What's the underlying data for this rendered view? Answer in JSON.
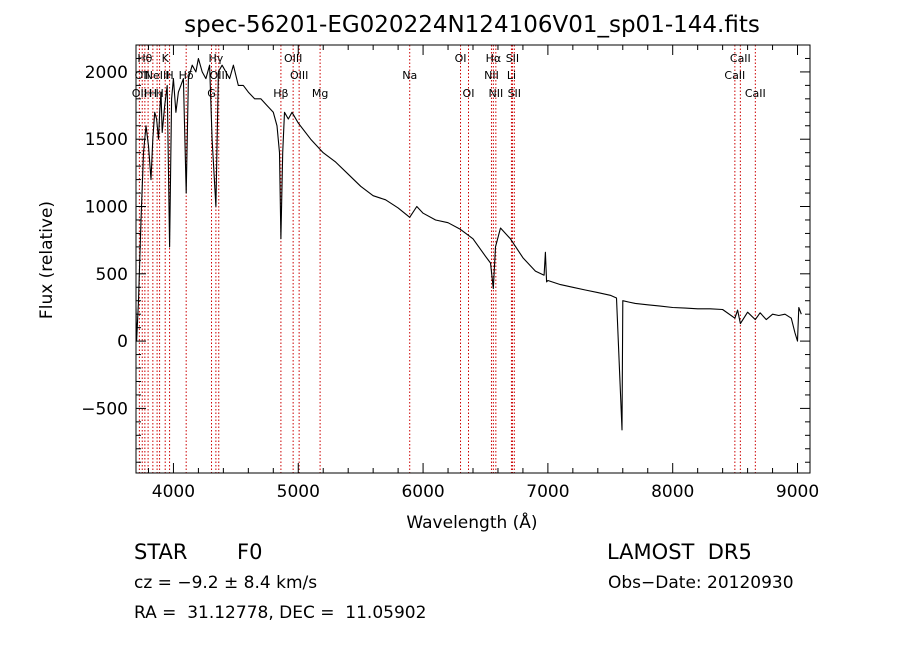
{
  "chart_data": {
    "type": "line",
    "title": "spec-56201-EG020224N124106V01_sp01-144.fits",
    "xlabel": "Wavelength (Å)",
    "ylabel": "Flux (relative)",
    "xlim": [
      3700,
      9100
    ],
    "ylim": [
      -980,
      2200
    ],
    "x_ticks": [
      4000,
      5000,
      6000,
      7000,
      8000,
      9000
    ],
    "x_tick_labels": [
      "4000",
      "5000",
      "6000",
      "7000",
      "8000",
      "9000"
    ],
    "y_ticks": [
      -500,
      0,
      500,
      1000,
      1500,
      2000
    ],
    "y_tick_labels": [
      "−500",
      "0",
      "500",
      "1000",
      "1500",
      "2000"
    ],
    "line_color": "#000000",
    "line_marker_color": "#cc0000",
    "series": [
      {
        "x": [
          3700,
          3705,
          3720,
          3740,
          3760,
          3780,
          3800,
          3820,
          3835,
          3850,
          3865,
          3880,
          3890,
          3900,
          3910,
          3930,
          3950,
          3969,
          3985,
          4000,
          4020,
          4040,
          4060,
          4080,
          4102,
          4120,
          4150,
          4180,
          4200,
          4230,
          4260,
          4290,
          4310,
          4340,
          4360,
          4390,
          4420,
          4450,
          4480,
          4520,
          4560,
          4600,
          4650,
          4700,
          4750,
          4800,
          4830,
          4850,
          4861,
          4875,
          4890,
          4920,
          4950,
          5000,
          5100,
          5200,
          5300,
          5400,
          5500,
          5600,
          5700,
          5800,
          5893,
          5950,
          6000,
          6100,
          6200,
          6300,
          6400,
          6500,
          6540,
          6563,
          6580,
          6620,
          6700,
          6800,
          6900,
          6970,
          6980,
          6990,
          7000,
          7100,
          7200,
          7300,
          7400,
          7500,
          7550,
          7594,
          7600,
          7650,
          7700,
          7800,
          7900,
          8000,
          8100,
          8200,
          8300,
          8400,
          8498,
          8520,
          8542,
          8600,
          8662,
          8700,
          8750,
          8800,
          8850,
          8900,
          8950,
          8980,
          9000,
          9010,
          9030
        ],
        "y": [
          250,
          0,
          300,
          900,
          1400,
          1600,
          1450,
          1200,
          1500,
          1700,
          1650,
          1500,
          1700,
          1850,
          1550,
          1750,
          1900,
          700,
          1800,
          1950,
          1700,
          1850,
          1900,
          1950,
          1100,
          1950,
          2050,
          2000,
          2100,
          2000,
          1950,
          2050,
          1500,
          1000,
          2000,
          2050,
          2000,
          1950,
          2050,
          1900,
          1900,
          1850,
          1800,
          1800,
          1750,
          1700,
          1600,
          1400,
          760,
          1400,
          1700,
          1650,
          1700,
          1620,
          1500,
          1400,
          1330,
          1240,
          1150,
          1080,
          1050,
          990,
          920,
          1000,
          950,
          900,
          880,
          830,
          760,
          630,
          580,
          390,
          700,
          840,
          760,
          620,
          520,
          490,
          660,
          440,
          450,
          420,
          400,
          380,
          360,
          340,
          320,
          -660,
          300,
          290,
          280,
          270,
          260,
          250,
          245,
          240,
          240,
          235,
          170,
          230,
          130,
          215,
          160,
          210,
          160,
          200,
          190,
          200,
          170,
          60,
          0,
          250,
          200
        ]
      }
    ],
    "line_markers": [
      {
        "x": 3727,
        "label": "OII",
        "row": 2
      },
      {
        "x": 3750,
        "label": "OII",
        "row": 1
      },
      {
        "x": 3771,
        "label": "Hθ",
        "row": 0
      },
      {
        "x": 3797,
        "label": "H",
        "row": 2
      },
      {
        "x": 3835,
        "label": "H",
        "row": 2
      },
      {
        "x": 3869,
        "label": "NeIII",
        "row": 1
      },
      {
        "x": 3889,
        "label": "H",
        "row": 2
      },
      {
        "x": 3934,
        "label": "K",
        "row": 0
      },
      {
        "x": 3969,
        "label": "H",
        "row": 1
      },
      {
        "x": 4102,
        "label": "Hδ",
        "row": 1
      },
      {
        "x": 4305,
        "label": "G",
        "row": 2
      },
      {
        "x": 4340,
        "label": "Hγ",
        "row": 0
      },
      {
        "x": 4363,
        "label": "OIII",
        "row": 1
      },
      {
        "x": 4861,
        "label": "Hβ",
        "row": 2
      },
      {
        "x": 4959,
        "label": "OIII",
        "row": 0
      },
      {
        "x": 5007,
        "label": "OIII",
        "row": 1
      },
      {
        "x": 5175,
        "label": "Mg",
        "row": 2
      },
      {
        "x": 5893,
        "label": "Na",
        "row": 1
      },
      {
        "x": 6300,
        "label": "OI",
        "row": 0
      },
      {
        "x": 6364,
        "label": "OI",
        "row": 2
      },
      {
        "x": 6548,
        "label": "NII",
        "row": 1
      },
      {
        "x": 6563,
        "label": "Hα",
        "row": 0
      },
      {
        "x": 6583,
        "label": "NII",
        "row": 2
      },
      {
        "x": 6708,
        "label": "Li",
        "row": 1
      },
      {
        "x": 6716,
        "label": "SII",
        "row": 0
      },
      {
        "x": 6731,
        "label": "SII",
        "row": 2
      },
      {
        "x": 8498,
        "label": "CaII",
        "row": 1
      },
      {
        "x": 8542,
        "label": "CaII",
        "row": 0
      },
      {
        "x": 8662,
        "label": "CaII",
        "row": 2
      }
    ]
  },
  "info": {
    "object_class": "STAR",
    "subclass": "F0",
    "redshift": "cz = −9.2 ± 8.4 km/s",
    "coords": "RA =  31.12778, DEC =  11.05902",
    "survey": "LAMOST  DR5",
    "obs_date": "Obs−Date: 20120930"
  }
}
